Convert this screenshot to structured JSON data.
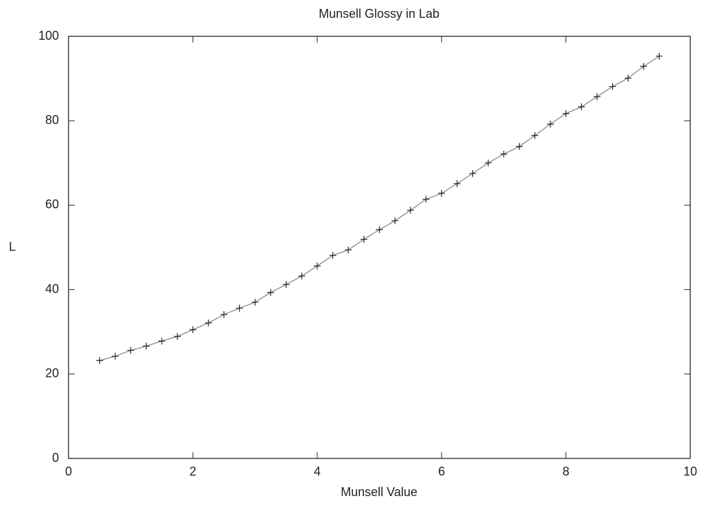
{
  "chart_data": {
    "type": "line",
    "title": "Munsell Glossy in Lab",
    "xlabel": "Munsell Value",
    "ylabel": "L",
    "x": [
      0.5,
      0.75,
      1.0,
      1.25,
      1.5,
      1.75,
      2.0,
      2.25,
      2.5,
      2.75,
      3.0,
      3.25,
      3.5,
      3.75,
      4.0,
      4.25,
      4.5,
      4.75,
      5.0,
      5.25,
      5.5,
      5.75,
      6.0,
      6.25,
      6.5,
      6.75,
      7.0,
      7.25,
      7.5,
      7.75,
      8.0,
      8.25,
      8.5,
      8.75,
      9.0,
      9.25,
      9.5
    ],
    "values": [
      23.2,
      24.2,
      25.6,
      26.6,
      27.8,
      28.9,
      30.5,
      32.1,
      34.1,
      35.6,
      37.0,
      39.3,
      41.2,
      43.2,
      45.6,
      48.1,
      49.4,
      51.9,
      54.2,
      56.3,
      58.8,
      61.4,
      62.8,
      65.1,
      67.5,
      70.0,
      72.1,
      73.9,
      76.5,
      79.2,
      81.7,
      83.3,
      85.7,
      88.1,
      90.1,
      92.9,
      95.3
    ],
    "color": "#888888",
    "marker_color": "#222222",
    "xlim": [
      0,
      10
    ],
    "xticks": [
      0,
      2,
      4,
      6,
      8,
      10
    ],
    "ylim": [
      0,
      100
    ],
    "yticks": [
      0,
      20,
      40,
      60,
      80,
      100
    ],
    "grid": false
  }
}
